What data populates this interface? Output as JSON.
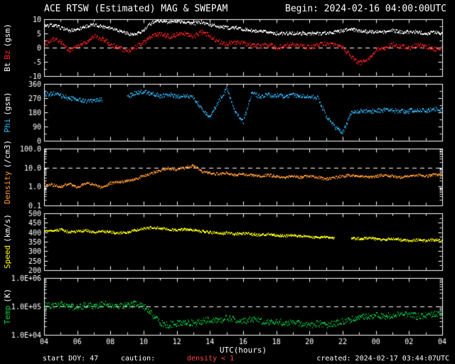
{
  "header": {
    "title": "ACE RTSW (Estimated) MAG & SWEPAM",
    "begin": "Begin: 2024-02-16 04:00:00UTC"
  },
  "footer": {
    "start_doy": "start DOY: 47",
    "caution_label": "caution:",
    "caution_value": "density < 1",
    "created": "created: 2024-02-17 03:44:07UTC"
  },
  "colors": {
    "background": "#000000",
    "frame": "#ffffff",
    "bt": "#ffffff",
    "bz": "#ff2222",
    "phi": "#33bbff",
    "density": "#ff9933",
    "speed": "#ffff00",
    "temp": "#00cc44",
    "caution": "#ff4444"
  },
  "chart_data": {
    "type": "scatter",
    "title": "ACE RTSW (Estimated) MAG & SWEPAM",
    "x": {
      "label": "UTC(hours)",
      "start_hour": 4,
      "end_hour": 28,
      "anchor_step_hours": 0.5,
      "tick_interval_hours": 2,
      "tick_labels": [
        "04",
        "06",
        "08",
        "10",
        "12",
        "14",
        "16",
        "18",
        "20",
        "22",
        "00",
        "02",
        "04"
      ]
    },
    "panels": [
      {
        "id": "bt-bz",
        "log": false,
        "ylim": [
          -10,
          10
        ],
        "ytick_values": [
          10,
          5,
          0,
          -5,
          -10
        ],
        "ytick_labels": [
          "10",
          "5",
          "0",
          "-5",
          "-10"
        ],
        "dashed_lines": [
          0
        ],
        "axis_label_parts": [
          {
            "text": "Bt",
            "color": "#ffffff"
          },
          {
            "text": "Bz",
            "color": "#ff2222"
          },
          {
            "text": "(gsm)",
            "color": "#ffffff"
          }
        ],
        "series": [
          {
            "name": "Bz",
            "color": "#ff2222",
            "spread": 1.6,
            "values": [
              1,
              3,
              2,
              -1,
              0.5,
              2,
              4,
              3,
              1,
              0,
              -1.5,
              0,
              2,
              4,
              5,
              4,
              4.5,
              5,
              4,
              5.5,
              4,
              2,
              1,
              2,
              1.5,
              1,
              0.5,
              1,
              0,
              0.5,
              1,
              0.5,
              0,
              1,
              1.5,
              1,
              0,
              -3,
              -5.5,
              -4,
              -1,
              0,
              1,
              0.5,
              0,
              1,
              0.5,
              -0.5,
              0
            ]
          },
          {
            "name": "Bt",
            "color": "#ffffff",
            "spread": 1.1,
            "values": [
              7.5,
              8,
              7,
              6,
              6.5,
              7.5,
              8,
              7.5,
              7,
              6,
              5,
              4.5,
              6,
              9,
              9.5,
              9,
              9.5,
              9,
              8.5,
              9,
              8,
              7.5,
              7,
              7,
              6.5,
              6,
              5.5,
              5.5,
              5,
              5,
              5,
              5,
              5,
              5,
              5,
              5.5,
              6,
              6.5,
              6,
              5.5,
              5.5,
              5.5,
              6,
              5.5,
              5.5,
              5.5,
              5,
              5.5,
              5
            ]
          }
        ]
      },
      {
        "id": "phi",
        "log": false,
        "ylim": [
          0,
          360
        ],
        "ytick_values": [
          360,
          270,
          180,
          90,
          0
        ],
        "ytick_labels": [
          "360",
          "270",
          "180",
          "90",
          "0"
        ],
        "dashed_lines": [],
        "axis_label_parts": [
          {
            "text": "Phi",
            "color": "#33bbff"
          },
          {
            "text": "(gsm)",
            "color": "#ffffff"
          }
        ],
        "series": [
          {
            "name": "Phi",
            "color": "#33bbff",
            "spread": 26,
            "values": [
              290,
              300,
              285,
              270,
              260,
              250,
              255,
              260,
              null,
              null,
              280,
              300,
              310,
              295,
              285,
              290,
              280,
              285,
              270,
              200,
              150,
              250,
              330,
              180,
              120,
              300,
              280,
              290,
              285,
              280,
              290,
              285,
              280,
              270,
              150,
              90,
              50,
              180,
              190,
              185,
              190,
              195,
              190,
              185,
              190,
              195,
              190,
              200,
              195
            ]
          }
        ]
      },
      {
        "id": "density",
        "log": true,
        "ylim": [
          0.1,
          100
        ],
        "ytick_values": [
          100,
          10,
          1,
          0.1
        ],
        "ytick_labels": [
          "100.0",
          "10.0",
          "1.0",
          "0.1"
        ],
        "dashed_lines": [
          10
        ],
        "axis_label_parts": [
          {
            "text": "Density",
            "color": "#ff9933"
          },
          {
            "text": "(/cm3)",
            "color": "#ffffff"
          }
        ],
        "series": [
          {
            "name": "Density",
            "color": "#ff9933",
            "spread": 0.3,
            "values": [
              1.3,
              1.2,
              1,
              1.4,
              0.9,
              1.5,
              1.3,
              0.8,
              1.5,
              1.8,
              2,
              2.5,
              3.5,
              5,
              7,
              9,
              8,
              10,
              12,
              6,
              5,
              4.5,
              5,
              4,
              4.5,
              4,
              3.5,
              4,
              3.5,
              3,
              3.5,
              3,
              3.5,
              3,
              2.5,
              3,
              3.5,
              4,
              3.5,
              3,
              3.5,
              4,
              3.5,
              3,
              3.5,
              4,
              3.5,
              4.5,
              4
            ]
          }
        ]
      },
      {
        "id": "speed",
        "log": false,
        "ylim": [
          200,
          500
        ],
        "ytick_values": [
          500,
          450,
          400,
          350,
          300,
          250,
          200
        ],
        "ytick_labels": [
          "500",
          "450",
          "400",
          "350",
          "300",
          "250",
          "200"
        ],
        "dashed_lines": [],
        "axis_label_parts": [
          {
            "text": "Speed",
            "color": "#ffff00"
          },
          {
            "text": "(km/s)",
            "color": "#ffffff"
          }
        ],
        "series": [
          {
            "name": "Speed",
            "color": "#ffff00",
            "spread": 12,
            "values": [
              405,
              410,
              415,
              400,
              405,
              410,
              400,
              405,
              400,
              395,
              400,
              410,
              420,
              425,
              420,
              415,
              410,
              415,
              410,
              405,
              400,
              395,
              395,
              390,
              395,
              390,
              385,
              390,
              385,
              380,
              385,
              380,
              375,
              370,
              375,
              370,
              null,
              370,
              365,
              370,
              365,
              360,
              365,
              360,
              355,
              360,
              355,
              360,
              355
            ]
          }
        ]
      },
      {
        "id": "temp",
        "log": true,
        "ylim": [
          10000,
          1000000
        ],
        "ytick_values": [
          1000000,
          100000,
          10000
        ],
        "ytick_labels": [
          "1.0E+06",
          "1.0E+05",
          "1.0E+04"
        ],
        "dashed_lines": [
          100000
        ],
        "axis_label_parts": [
          {
            "text": "Temp",
            "color": "#00cc44"
          },
          {
            "text": "(K)",
            "color": "#ffffff"
          }
        ],
        "series": [
          {
            "name": "Temp",
            "color": "#00cc44",
            "spread": 0.5,
            "values": [
              110000,
              100000,
              120000,
              100000,
              90000,
              110000,
              100000,
              120000,
              110000,
              100000,
              110000,
              120000,
              100000,
              50000,
              25000,
              22000,
              25000,
              28000,
              25000,
              30000,
              35000,
              30000,
              40000,
              35000,
              30000,
              35000,
              30000,
              28000,
              30000,
              25000,
              28000,
              25000,
              22000,
              25000,
              22000,
              25000,
              30000,
              35000,
              40000,
              45000,
              50000,
              45000,
              50000,
              55000,
              50000,
              45000,
              50000,
              55000,
              50000
            ]
          }
        ]
      }
    ]
  }
}
